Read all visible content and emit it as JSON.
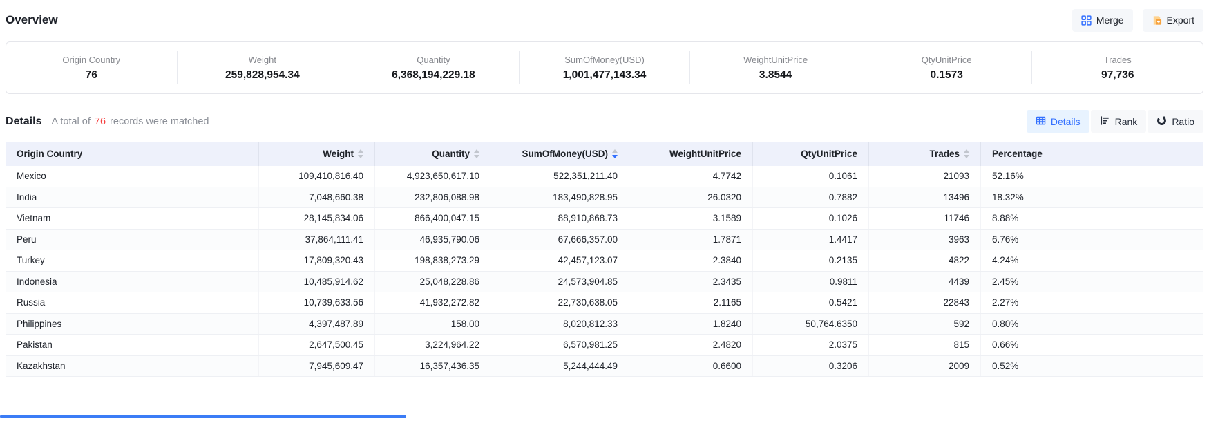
{
  "header": {
    "title": "Overview",
    "merge_label": "Merge",
    "export_label": "Export"
  },
  "overview_stats": [
    {
      "label": "Origin Country",
      "value": "76"
    },
    {
      "label": "Weight",
      "value": "259,828,954.34"
    },
    {
      "label": "Quantity",
      "value": "6,368,194,229.18"
    },
    {
      "label": "SumOfMoney(USD)",
      "value": "1,001,477,143.34"
    },
    {
      "label": "WeightUnitPrice",
      "value": "3.8544"
    },
    {
      "label": "QtyUnitPrice",
      "value": "0.1573"
    },
    {
      "label": "Trades",
      "value": "97,736"
    }
  ],
  "details": {
    "title": "Details",
    "subtitle_prefix": "A total of",
    "match_count": "76",
    "subtitle_suffix": "records were matched",
    "tabs": [
      {
        "label": "Details",
        "icon": "table-icon",
        "active": true
      },
      {
        "label": "Rank",
        "icon": "rank-icon",
        "active": false
      },
      {
        "label": "Ratio",
        "icon": "ratio-icon",
        "active": false
      }
    ]
  },
  "table": {
    "columns": [
      {
        "label": "Origin Country",
        "align": "left",
        "sort": "none"
      },
      {
        "label": "Weight",
        "align": "right",
        "sort": "both"
      },
      {
        "label": "Quantity",
        "align": "right",
        "sort": "both"
      },
      {
        "label": "SumOfMoney(USD)",
        "align": "right",
        "sort": "desc"
      },
      {
        "label": "WeightUnitPrice",
        "align": "right",
        "sort": "none"
      },
      {
        "label": "QtyUnitPrice",
        "align": "right",
        "sort": "none"
      },
      {
        "label": "Trades",
        "align": "right",
        "sort": "both"
      },
      {
        "label": "Percentage",
        "align": "left",
        "sort": "none"
      }
    ],
    "rows": [
      [
        "Mexico",
        "109,410,816.40",
        "4,923,650,617.10",
        "522,351,211.40",
        "4.7742",
        "0.1061",
        "21093",
        "52.16%"
      ],
      [
        "India",
        "7,048,660.38",
        "232,806,088.98",
        "183,490,828.95",
        "26.0320",
        "0.7882",
        "13496",
        "18.32%"
      ],
      [
        "Vietnam",
        "28,145,834.06",
        "866,400,047.15",
        "88,910,868.73",
        "3.1589",
        "0.1026",
        "11746",
        "8.88%"
      ],
      [
        "Peru",
        "37,864,111.41",
        "46,935,790.06",
        "67,666,357.00",
        "1.7871",
        "1.4417",
        "3963",
        "6.76%"
      ],
      [
        "Turkey",
        "17,809,320.43",
        "198,838,273.29",
        "42,457,123.07",
        "2.3840",
        "0.2135",
        "4822",
        "4.24%"
      ],
      [
        "Indonesia",
        "10,485,914.62",
        "25,048,228.86",
        "24,573,904.85",
        "2.3435",
        "0.9811",
        "4439",
        "2.45%"
      ],
      [
        "Russia",
        "10,739,633.56",
        "41,932,272.82",
        "22,730,638.05",
        "2.1165",
        "0.5421",
        "22843",
        "2.27%"
      ],
      [
        "Philippines",
        "4,397,487.89",
        "158.00",
        "8,020,812.33",
        "1.8240",
        "50,764.6350",
        "592",
        "0.80%"
      ],
      [
        "Pakistan",
        "2,647,500.45",
        "3,224,964.22",
        "6,570,981.25",
        "2.4820",
        "2.0375",
        "815",
        "0.66%"
      ],
      [
        "Kazakhstan",
        "7,945,609.47",
        "16,357,436.35",
        "5,244,444.49",
        "0.6600",
        "0.3206",
        "2009",
        "0.52%"
      ]
    ]
  },
  "colors": {
    "accent_blue": "#3370ff",
    "count_red": "#f53f3f",
    "export_orange": "#f7a23d",
    "table_header_bg": "#eef1fb",
    "active_tab_bg": "#e8f3ff",
    "inactive_tab_bg": "#f7f8fa",
    "scrollbar_blue": "#3b7cf6"
  }
}
